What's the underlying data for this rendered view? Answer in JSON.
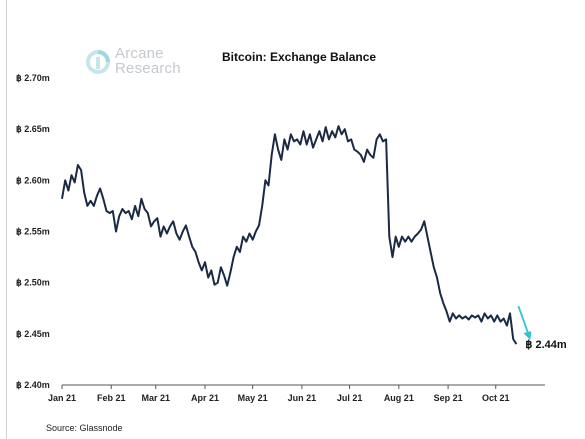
{
  "logo": {
    "line1": "Arcane",
    "line2": "Research",
    "icon": "arcane-logo-icon"
  },
  "source": "Source: Glassnode",
  "chart_data": {
    "type": "line",
    "title": "Bitcoin: Exchange Balance",
    "xlabel": "",
    "ylabel": "",
    "y_unit": "million BTC",
    "ylim": [
      2.4,
      2.7
    ],
    "y_ticks": [
      "฿ 2.70m",
      "฿ 2.65m",
      "฿ 2.60m",
      "฿ 2.55m",
      "฿ 2.50m",
      "฿ 2.45m",
      "฿ 2.40m"
    ],
    "y_tick_values": [
      2.7,
      2.65,
      2.6,
      2.55,
      2.5,
      2.45,
      2.4
    ],
    "x_ticks": [
      "Jan 21",
      "Feb 21",
      "Mar 21",
      "Apr 21",
      "May 21",
      "Jun 21",
      "Jul 21",
      "Aug 21",
      "Sep 21",
      "Oct 21"
    ],
    "xlim": [
      "2021-01-01",
      "2021-11-01"
    ],
    "grid": false,
    "line_color": "#1b2a44",
    "annotation": {
      "text": "฿ 2.44m",
      "color": "#2ec4d6",
      "arrow": true
    },
    "series": [
      {
        "values": [
          [
            "2021-01-01",
            2.582
          ],
          [
            "2021-01-03",
            2.6
          ],
          [
            "2021-01-05",
            2.59
          ],
          [
            "2021-01-07",
            2.605
          ],
          [
            "2021-01-09",
            2.598
          ],
          [
            "2021-01-11",
            2.615
          ],
          [
            "2021-01-13",
            2.61
          ],
          [
            "2021-01-15",
            2.588
          ],
          [
            "2021-01-17",
            2.575
          ],
          [
            "2021-01-19",
            2.58
          ],
          [
            "2021-01-21",
            2.575
          ],
          [
            "2021-01-23",
            2.585
          ],
          [
            "2021-01-25",
            2.592
          ],
          [
            "2021-01-27",
            2.582
          ],
          [
            "2021-01-29",
            2.57
          ],
          [
            "2021-01-31",
            2.568
          ],
          [
            "2021-02-02",
            2.57
          ],
          [
            "2021-02-04",
            2.55
          ],
          [
            "2021-02-06",
            2.565
          ],
          [
            "2021-02-08",
            2.572
          ],
          [
            "2021-02-10",
            2.568
          ],
          [
            "2021-02-12",
            2.57
          ],
          [
            "2021-02-14",
            2.562
          ],
          [
            "2021-02-16",
            2.575
          ],
          [
            "2021-02-18",
            2.565
          ],
          [
            "2021-02-20",
            2.582
          ],
          [
            "2021-02-22",
            2.572
          ],
          [
            "2021-02-24",
            2.568
          ],
          [
            "2021-02-26",
            2.555
          ],
          [
            "2021-02-28",
            2.56
          ],
          [
            "2021-03-02",
            2.563
          ],
          [
            "2021-03-04",
            2.545
          ],
          [
            "2021-03-06",
            2.555
          ],
          [
            "2021-03-08",
            2.548
          ],
          [
            "2021-03-10",
            2.555
          ],
          [
            "2021-03-12",
            2.56
          ],
          [
            "2021-03-14",
            2.548
          ],
          [
            "2021-03-16",
            2.542
          ],
          [
            "2021-03-18",
            2.55
          ],
          [
            "2021-03-20",
            2.556
          ],
          [
            "2021-03-22",
            2.545
          ],
          [
            "2021-03-24",
            2.535
          ],
          [
            "2021-03-26",
            2.53
          ],
          [
            "2021-03-28",
            2.52
          ],
          [
            "2021-03-30",
            2.512
          ],
          [
            "2021-04-01",
            2.52
          ],
          [
            "2021-04-03",
            2.505
          ],
          [
            "2021-04-05",
            2.512
          ],
          [
            "2021-04-07",
            2.498
          ],
          [
            "2021-04-09",
            2.5
          ],
          [
            "2021-04-11",
            2.515
          ],
          [
            "2021-04-13",
            2.507
          ],
          [
            "2021-04-15",
            2.497
          ],
          [
            "2021-04-17",
            2.51
          ],
          [
            "2021-04-19",
            2.525
          ],
          [
            "2021-04-21",
            2.535
          ],
          [
            "2021-04-23",
            2.53
          ],
          [
            "2021-04-25",
            2.545
          ],
          [
            "2021-04-27",
            2.54
          ],
          [
            "2021-04-29",
            2.548
          ],
          [
            "2021-05-01",
            2.542
          ],
          [
            "2021-05-03",
            2.55
          ],
          [
            "2021-05-05",
            2.556
          ],
          [
            "2021-05-07",
            2.575
          ],
          [
            "2021-05-09",
            2.6
          ],
          [
            "2021-05-11",
            2.595
          ],
          [
            "2021-05-13",
            2.625
          ],
          [
            "2021-05-15",
            2.645
          ],
          [
            "2021-05-17",
            2.63
          ],
          [
            "2021-05-19",
            2.62
          ],
          [
            "2021-05-21",
            2.64
          ],
          [
            "2021-05-23",
            2.63
          ],
          [
            "2021-05-25",
            2.645
          ],
          [
            "2021-05-27",
            2.638
          ],
          [
            "2021-05-29",
            2.64
          ],
          [
            "2021-05-31",
            2.635
          ],
          [
            "2021-06-02",
            2.648
          ],
          [
            "2021-06-04",
            2.635
          ],
          [
            "2021-06-06",
            2.645
          ],
          [
            "2021-06-08",
            2.632
          ],
          [
            "2021-06-10",
            2.64
          ],
          [
            "2021-06-12",
            2.648
          ],
          [
            "2021-06-14",
            2.638
          ],
          [
            "2021-06-16",
            2.652
          ],
          [
            "2021-06-18",
            2.64
          ],
          [
            "2021-06-20",
            2.648
          ],
          [
            "2021-06-22",
            2.642
          ],
          [
            "2021-06-24",
            2.653
          ],
          [
            "2021-06-26",
            2.645
          ],
          [
            "2021-06-28",
            2.65
          ],
          [
            "2021-06-30",
            2.638
          ],
          [
            "2021-07-02",
            2.64
          ],
          [
            "2021-07-04",
            2.63
          ],
          [
            "2021-07-06",
            2.628
          ],
          [
            "2021-07-08",
            2.625
          ],
          [
            "2021-07-10",
            2.618
          ],
          [
            "2021-07-12",
            2.63
          ],
          [
            "2021-07-14",
            2.625
          ],
          [
            "2021-07-16",
            2.622
          ],
          [
            "2021-07-18",
            2.64
          ],
          [
            "2021-07-20",
            2.645
          ],
          [
            "2021-07-22",
            2.638
          ],
          [
            "2021-07-24",
            2.64
          ],
          [
            "2021-07-26",
            2.545
          ],
          [
            "2021-07-28",
            2.525
          ],
          [
            "2021-07-30",
            2.545
          ],
          [
            "2021-08-01",
            2.535
          ],
          [
            "2021-08-03",
            2.545
          ],
          [
            "2021-08-05",
            2.54
          ],
          [
            "2021-08-07",
            2.545
          ],
          [
            "2021-08-09",
            2.54
          ],
          [
            "2021-08-11",
            2.545
          ],
          [
            "2021-08-13",
            2.548
          ],
          [
            "2021-08-15",
            2.552
          ],
          [
            "2021-08-17",
            2.56
          ],
          [
            "2021-08-19",
            2.545
          ],
          [
            "2021-08-21",
            2.53
          ],
          [
            "2021-08-23",
            2.515
          ],
          [
            "2021-08-25",
            2.505
          ],
          [
            "2021-08-27",
            2.49
          ],
          [
            "2021-08-29",
            2.48
          ],
          [
            "2021-08-31",
            2.472
          ],
          [
            "2021-09-02",
            2.462
          ],
          [
            "2021-09-04",
            2.47
          ],
          [
            "2021-09-06",
            2.465
          ],
          [
            "2021-09-08",
            2.468
          ],
          [
            "2021-09-10",
            2.465
          ],
          [
            "2021-09-12",
            2.467
          ],
          [
            "2021-09-14",
            2.464
          ],
          [
            "2021-09-16",
            2.468
          ],
          [
            "2021-09-18",
            2.466
          ],
          [
            "2021-09-20",
            2.468
          ],
          [
            "2021-09-22",
            2.462
          ],
          [
            "2021-09-24",
            2.47
          ],
          [
            "2021-09-26",
            2.465
          ],
          [
            "2021-09-28",
            2.468
          ],
          [
            "2021-09-30",
            2.462
          ],
          [
            "2021-10-02",
            2.468
          ],
          [
            "2021-10-04",
            2.462
          ],
          [
            "2021-10-06",
            2.465
          ],
          [
            "2021-10-08",
            2.458
          ],
          [
            "2021-10-10",
            2.47
          ],
          [
            "2021-10-12",
            2.445
          ],
          [
            "2021-10-14",
            2.44
          ]
        ]
      }
    ]
  }
}
